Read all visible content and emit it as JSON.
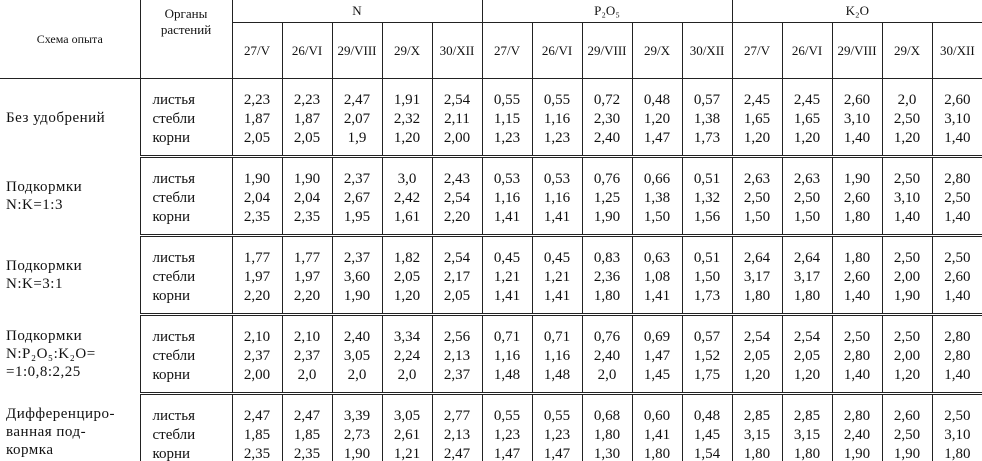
{
  "table": {
    "scheme_header": "Схема опыта",
    "organs_header": "Органы растений",
    "groups": [
      "N",
      "P₂O₅",
      "K₂O"
    ],
    "dates": [
      "27/V",
      "26/VI",
      "29/VIII",
      "29/X",
      "30/XII"
    ],
    "sections": [
      {
        "scheme": [
          "Без удобрений"
        ],
        "organs": [
          "листья",
          "стебли",
          "корни"
        ],
        "rows": [
          [
            "2,23",
            "2,23",
            "2,47",
            "1,91",
            "2,54",
            "0,55",
            "0,55",
            "0,72",
            "0,48",
            "0,57",
            "2,45",
            "2,45",
            "2,60",
            "2,0",
            "2,60"
          ],
          [
            "1,87",
            "1,87",
            "2,07",
            "2,32",
            "2,11",
            "1,15",
            "1,16",
            "2,30",
            "1,20",
            "1,38",
            "1,65",
            "1,65",
            "3,10",
            "2,50",
            "3,10"
          ],
          [
            "2,05",
            "2,05",
            "1,9",
            "1,20",
            "2,00",
            "1,23",
            "1,23",
            "2,40",
            "1,47",
            "1,73",
            "1,20",
            "1,20",
            "1,40",
            "1,20",
            "1,40"
          ]
        ]
      },
      {
        "scheme": [
          "Подкормки",
          "N:K=1:3"
        ],
        "organs": [
          "листья",
          "стебли",
          "корни"
        ],
        "rows": [
          [
            "1,90",
            "1,90",
            "2,37",
            "3,0",
            "2,43",
            "0,53",
            "0,53",
            "0,76",
            "0,66",
            "0,51",
            "2,63",
            "2,63",
            "1,90",
            "2,50",
            "2,80"
          ],
          [
            "2,04",
            "2,04",
            "2,67",
            "2,42",
            "2,54",
            "1,16",
            "1,16",
            "1,25",
            "1,38",
            "1,32",
            "2,50",
            "2,50",
            "2,60",
            "3,10",
            "2,50"
          ],
          [
            "2,35",
            "2,35",
            "1,95",
            "1,61",
            "2,20",
            "1,41",
            "1,41",
            "1,90",
            "1,50",
            "1,56",
            "1,50",
            "1,50",
            "1,80",
            "1,40",
            "1,40"
          ]
        ]
      },
      {
        "scheme": [
          "Подкормки",
          "N:K=3:1"
        ],
        "organs": [
          "листья",
          "стебли",
          "корни"
        ],
        "rows": [
          [
            "1,77",
            "1,77",
            "2,37",
            "1,82",
            "2,54",
            "0,45",
            "0,45",
            "0,83",
            "0,63",
            "0,51",
            "2,64",
            "2,64",
            "1,80",
            "2,50",
            "2,50"
          ],
          [
            "1,97",
            "1,97",
            "3,60",
            "2,05",
            "2,17",
            "1,21",
            "1,21",
            "2,36",
            "1,08",
            "1,50",
            "3,17",
            "3,17",
            "2,60",
            "2,00",
            "2,60"
          ],
          [
            "2,20",
            "2,20",
            "1,90",
            "1,20",
            "2,05",
            "1,41",
            "1,41",
            "1,80",
            "1,41",
            "1,73",
            "1,80",
            "1,80",
            "1,40",
            "1,90",
            "1,40"
          ]
        ]
      },
      {
        "scheme": [
          "Подкормки",
          "N:P₂O₅:K₂O=",
          "=1:0,8:2,25"
        ],
        "organs": [
          "листья",
          "стебли",
          "корни"
        ],
        "rows": [
          [
            "2,10",
            "2,10",
            "2,40",
            "3,34",
            "2,56",
            "0,71",
            "0,71",
            "0,76",
            "0,69",
            "0,57",
            "2,54",
            "2,54",
            "2,50",
            "2,50",
            "2,80"
          ],
          [
            "2,37",
            "2,37",
            "3,05",
            "2,24",
            "2,13",
            "1,16",
            "1,16",
            "2,40",
            "1,47",
            "1,52",
            "2,05",
            "2,05",
            "2,80",
            "2,00",
            "2,80"
          ],
          [
            "2,00",
            "2,0",
            "2,0",
            "2,0",
            "2,37",
            "1,48",
            "1,48",
            "2,0",
            "1,45",
            "1,75",
            "1,20",
            "1,20",
            "1,40",
            "1,20",
            "1,40"
          ]
        ]
      },
      {
        "scheme": [
          "Дифференциро-",
          "ванная под-",
          "кормка"
        ],
        "organs": [
          "листья",
          "стебли",
          "корни"
        ],
        "rows": [
          [
            "2,47",
            "2,47",
            "3,39",
            "3,05",
            "2,77",
            "0,55",
            "0,55",
            "0,68",
            "0,60",
            "0,48",
            "2,85",
            "2,85",
            "2,80",
            "2,60",
            "2,50"
          ],
          [
            "1,85",
            "1,85",
            "2,73",
            "2,61",
            "2,13",
            "1,23",
            "1,23",
            "1,80",
            "1,41",
            "1,45",
            "3,15",
            "3,15",
            "2,40",
            "2,50",
            "3,10"
          ],
          [
            "2,35",
            "2,35",
            "1,90",
            "1,21",
            "2,47",
            "1,47",
            "1,47",
            "1,30",
            "1,80",
            "1,54",
            "1,80",
            "1,80",
            "1,90",
            "1,90",
            "1,80"
          ]
        ]
      }
    ]
  }
}
